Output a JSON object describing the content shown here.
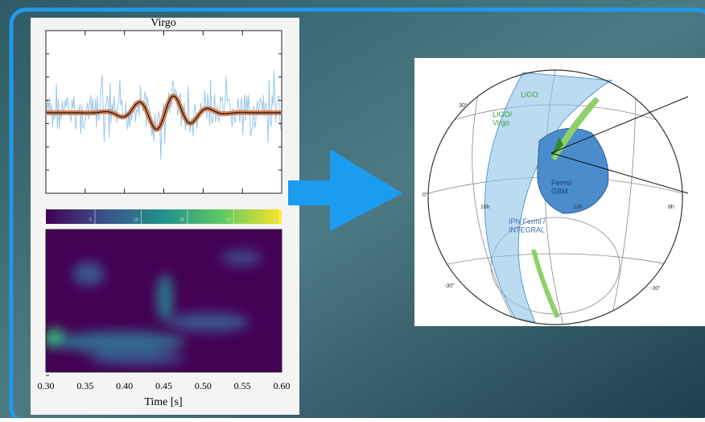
{
  "left_panel": {
    "title": "Virgo",
    "colorbar_ticks": [
      "5",
      "10",
      "15",
      "20",
      "25"
    ],
    "x_ticks": [
      "0.30",
      "0.35",
      "0.40",
      "0.45",
      "0.50",
      "0.55",
      "0.60"
    ],
    "x_label": "Time [s]"
  },
  "sky_map": {
    "labels": {
      "ligo": "LIGO",
      "ligo_virgo": "LIGO/\nVirgo",
      "fermi_gbm": "Fermi/\nGBM",
      "ipn": "IPN Fermi /\nINTEGRAL"
    },
    "coords": {
      "dec_30": "30°",
      "dec_0": "0°",
      "dec_m30_left": "-30°",
      "dec_m30_right": "-30°",
      "ra_16h": "16h",
      "ra_12h": "12h",
      "ra_8h": "8h"
    }
  }
}
